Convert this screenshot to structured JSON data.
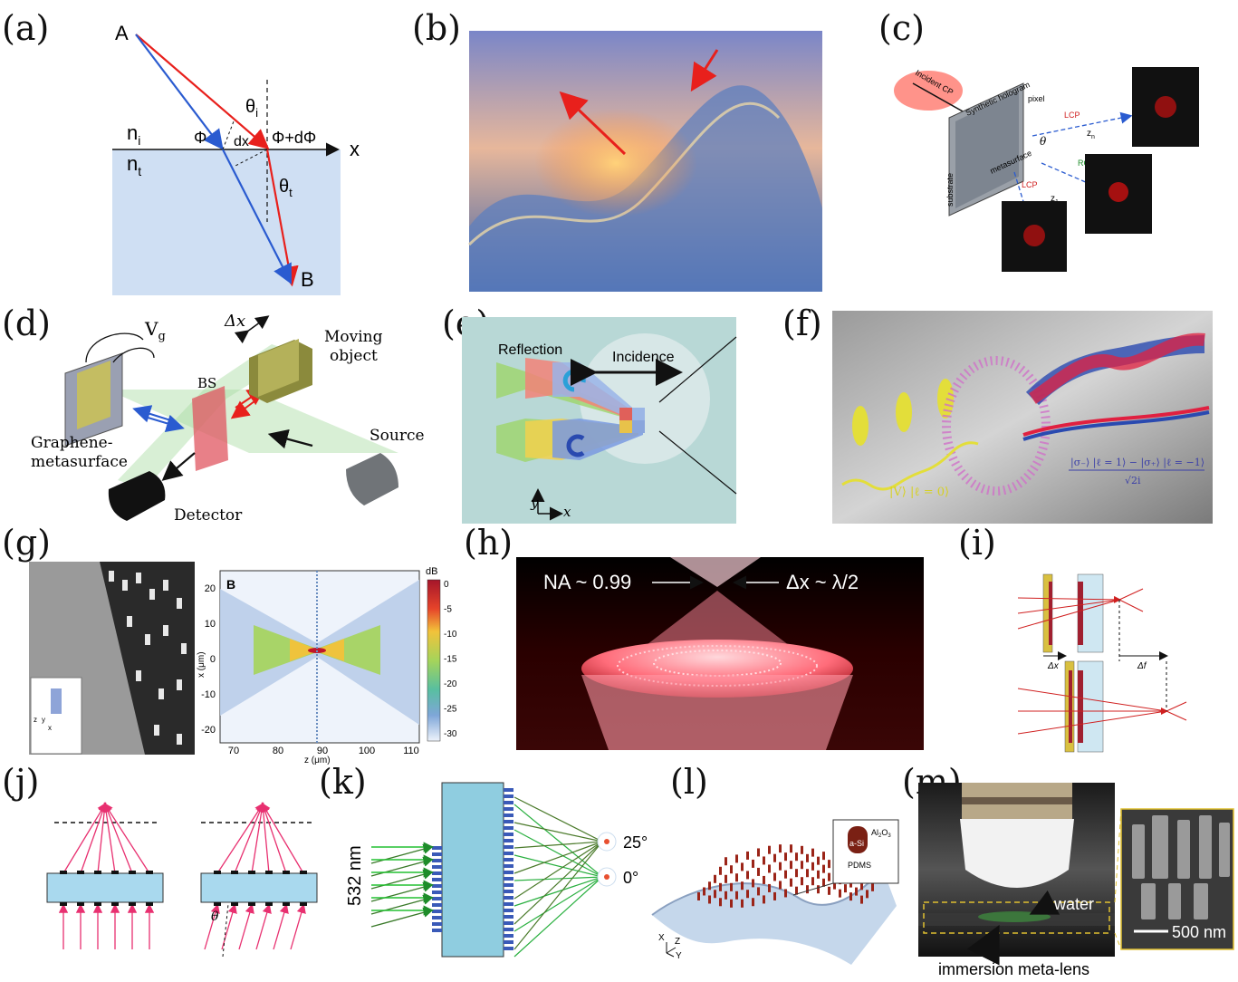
{
  "panels": {
    "a": {
      "label": "(a)",
      "point_a": "A",
      "point_b": "B",
      "n_i": "n",
      "n_i_sub": "i",
      "n_t": "n",
      "n_t_sub": "t",
      "theta_i": "θ",
      "theta_i_sub": "i",
      "theta_t": "θ",
      "theta_t_sub": "t",
      "phi": "Φ",
      "dx": "dx",
      "phi_dphi": "Φ+dΦ",
      "x_axis": "x"
    },
    "b": {
      "label": "(b)"
    },
    "c": {
      "label": "(c)",
      "incident": "Incident CP",
      "hologram": "Synthetic hologram",
      "pixel": "pixel",
      "substrate": "substrate",
      "metasurface": "metasurface",
      "lcp1": "LCP",
      "lcp2": "LCP",
      "rcp": "RCP",
      "theta": "θ",
      "zn": "z",
      "zn_sub": "n",
      "z1": "z",
      "z1_sub": "1",
      "z2": "z",
      "z2_sub": "2"
    },
    "d": {
      "label": "(d)",
      "vg": "V",
      "vg_sub": "g",
      "dx": "Δx",
      "moving": "Moving",
      "object": "object",
      "bs": "BS",
      "graphene": "Graphene-",
      "metasurface": "metasurface",
      "source": "Source",
      "detector": "Detector"
    },
    "e": {
      "label": "(e)",
      "reflection": "Reflection",
      "incidence": "Incidence",
      "y": "y",
      "x": "x"
    },
    "f": {
      "label": "(f)",
      "state_v": "|V⟩ |ℓ = 0⟩",
      "state_sum": "|σ₋⟩ |ℓ = 1⟩ − |σ₊⟩ |ℓ = −1⟩",
      "denominator": "√2i"
    },
    "g": {
      "label": "(g)",
      "plot_letter": "B",
      "colorbar_unit": "dB",
      "colorbar_ticks": [
        "0",
        "-5",
        "-10",
        "-15",
        "-20",
        "-25",
        "-30"
      ],
      "x_ticks": [
        "70",
        "80",
        "90",
        "100",
        "110"
      ],
      "y_ticks": [
        "20",
        "10",
        "0",
        "-10",
        "-20"
      ],
      "xlabel": "z (μm)",
      "ylabel": "x (μm)",
      "inset_z": "z",
      "inset_y": "y",
      "inset_x": "x"
    },
    "h": {
      "label": "(h)",
      "na": "NA ~ 0.99",
      "dx": "Δx ~ λ/2"
    },
    "i": {
      "label": "(i)",
      "dx": "Δx",
      "df": "Δf"
    },
    "j": {
      "label": "(j)",
      "theta": "θ"
    },
    "k": {
      "label": "(k)",
      "wavelength": "532 nm",
      "angle_25": "25°",
      "angle_0": "0°"
    },
    "l": {
      "label": "(l)",
      "asi": "a-Si",
      "al2o3": "Al",
      "al2o3_sub": "2",
      "al2o3_o": "O",
      "al2o3_o_sub": "3",
      "pdms": "PDMS",
      "ax_x": "X",
      "ax_z": "Z",
      "ax_y": "Y"
    },
    "m": {
      "label": "(m)",
      "water": "water",
      "meta_lens": "immersion meta-lens",
      "scale": "500 nm"
    }
  },
  "colors": {
    "red": "#e8201c",
    "blue": "#2a5bd0",
    "substrate_fill": "#cfdff3",
    "green_beam": "#9fd79a",
    "slab": "#a9d9ee",
    "pink_ray": "#e83070"
  }
}
